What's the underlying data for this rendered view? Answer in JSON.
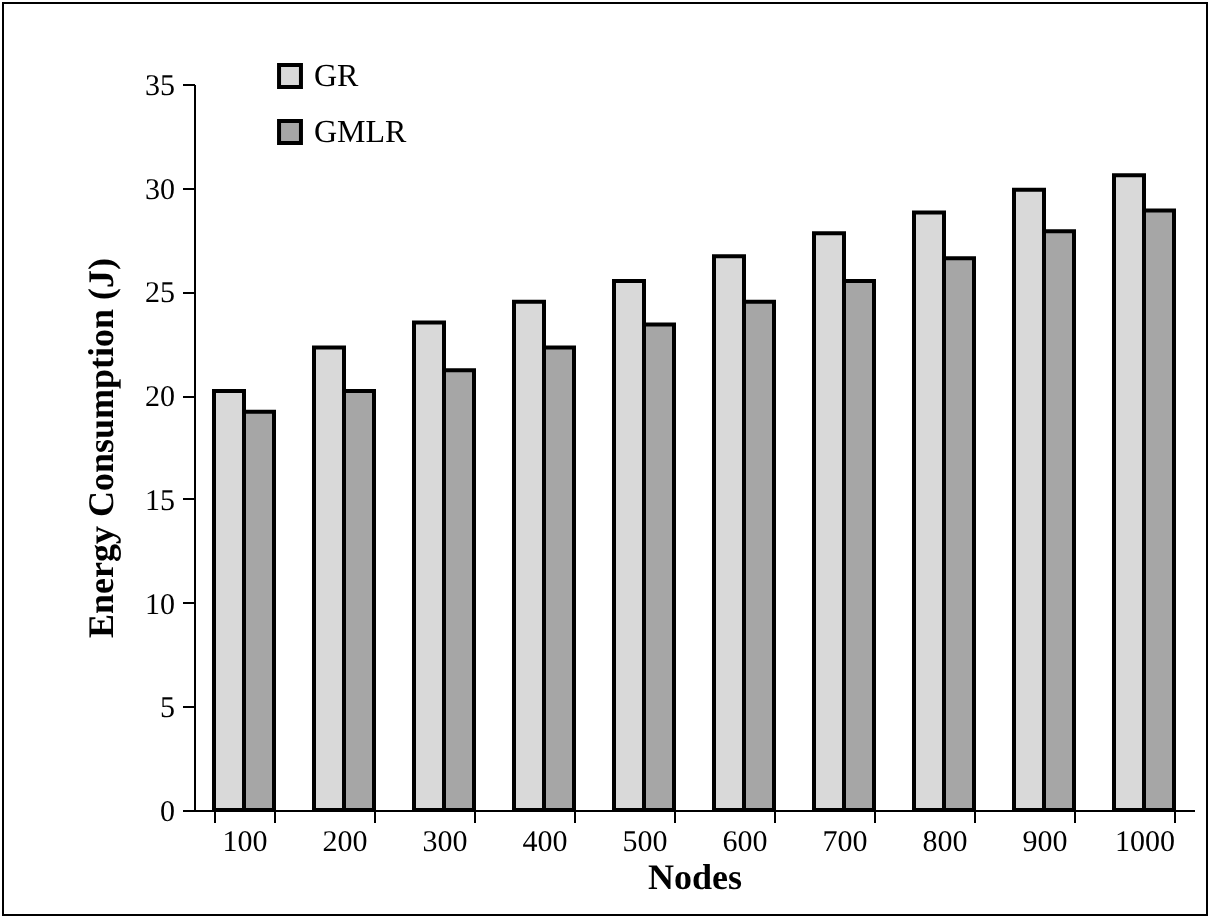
{
  "chart_data": {
    "type": "bar",
    "xlabel": "Nodes",
    "ylabel": "Energy Consumption (J)",
    "categories": [
      "100",
      "200",
      "300",
      "400",
      "500",
      "600",
      "700",
      "800",
      "900",
      "1000"
    ],
    "series": [
      {
        "name": "GR",
        "color": "#d9d9d9",
        "values": [
          20.2,
          22.3,
          23.5,
          24.5,
          25.5,
          26.7,
          27.8,
          28.8,
          29.9,
          30.6
        ]
      },
      {
        "name": "GMLR",
        "color": "#a6a6a6",
        "values": [
          19.2,
          20.2,
          21.2,
          22.3,
          23.4,
          24.5,
          25.5,
          26.6,
          27.9,
          28.9
        ]
      }
    ],
    "ylim": [
      0,
      35
    ],
    "yticks": [
      0,
      5,
      10,
      15,
      20,
      25,
      30,
      35
    ],
    "grid": false,
    "legend": "top left"
  }
}
